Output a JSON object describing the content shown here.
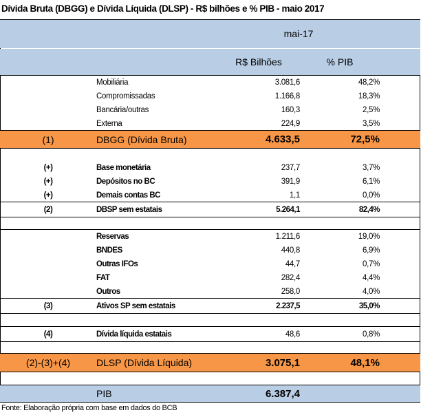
{
  "title": "Dívida Bruta (DBGG) e Dívida Líquida (DLSP) - R$ bilhões e % PIB - maio 2017",
  "header": {
    "period": "mai-17",
    "col_value": "R$ Bilhões",
    "col_pct": "% PIB"
  },
  "gross_items": [
    {
      "label": "Mobiliária",
      "value": "3.081,6",
      "pct": "48,2%"
    },
    {
      "label": "Compromissadas",
      "value": "1.166,8",
      "pct": "18,3%"
    },
    {
      "label": "Bancária/outras",
      "value": "160,3",
      "pct": "2,5%"
    },
    {
      "label": "Externa",
      "value": "224,9",
      "pct": "3,5%"
    }
  ],
  "dbgg": {
    "code": "(1)",
    "label": "DBGG (Dívida Bruta)",
    "value": "4.633,5",
    "pct": "72,5%"
  },
  "adds": [
    {
      "code": "(+)",
      "label": "Base monetária",
      "value": "237,7",
      "pct": "3,7%"
    },
    {
      "code": "(+)",
      "label": "Depósitos no BC",
      "value": "391,9",
      "pct": "6,1%"
    },
    {
      "code": "(+)",
      "label": "Demais contas BC",
      "value": "1,1",
      "pct": "0,0%"
    }
  ],
  "dbsp": {
    "code": "(2)",
    "label": "DBSP sem estatais",
    "value": "5.264,1",
    "pct": "82,4%"
  },
  "assets": [
    {
      "label": "Reservas",
      "value": "1.211,6",
      "pct": "19,0%"
    },
    {
      "label": "BNDES",
      "value": "440,8",
      "pct": "6,9%"
    },
    {
      "label": "Outras IFOs",
      "value": "44,7",
      "pct": "0,7%"
    },
    {
      "label": "FAT",
      "value": "282,4",
      "pct": "4,4%"
    },
    {
      "label": "Outros",
      "value": "258,0",
      "pct": "4,0%"
    }
  ],
  "ativos": {
    "code": "(3)",
    "label": "Ativos SP sem estatais",
    "value": "2.237,5",
    "pct": "35,0%"
  },
  "estatais": {
    "code": "(4)",
    "label": "Dívida líquida estatais",
    "value": "48,6",
    "pct": "0,8%"
  },
  "dlsp": {
    "code": "(2)-(3)+(4)",
    "label": "DLSP (Dívida Líquida)",
    "value": "3.075,1",
    "pct": "48,1%"
  },
  "pib": {
    "label": "PIB",
    "value": "6.387,4"
  },
  "source": "Fonte: Elaboração própria com base em dados do BCB"
}
